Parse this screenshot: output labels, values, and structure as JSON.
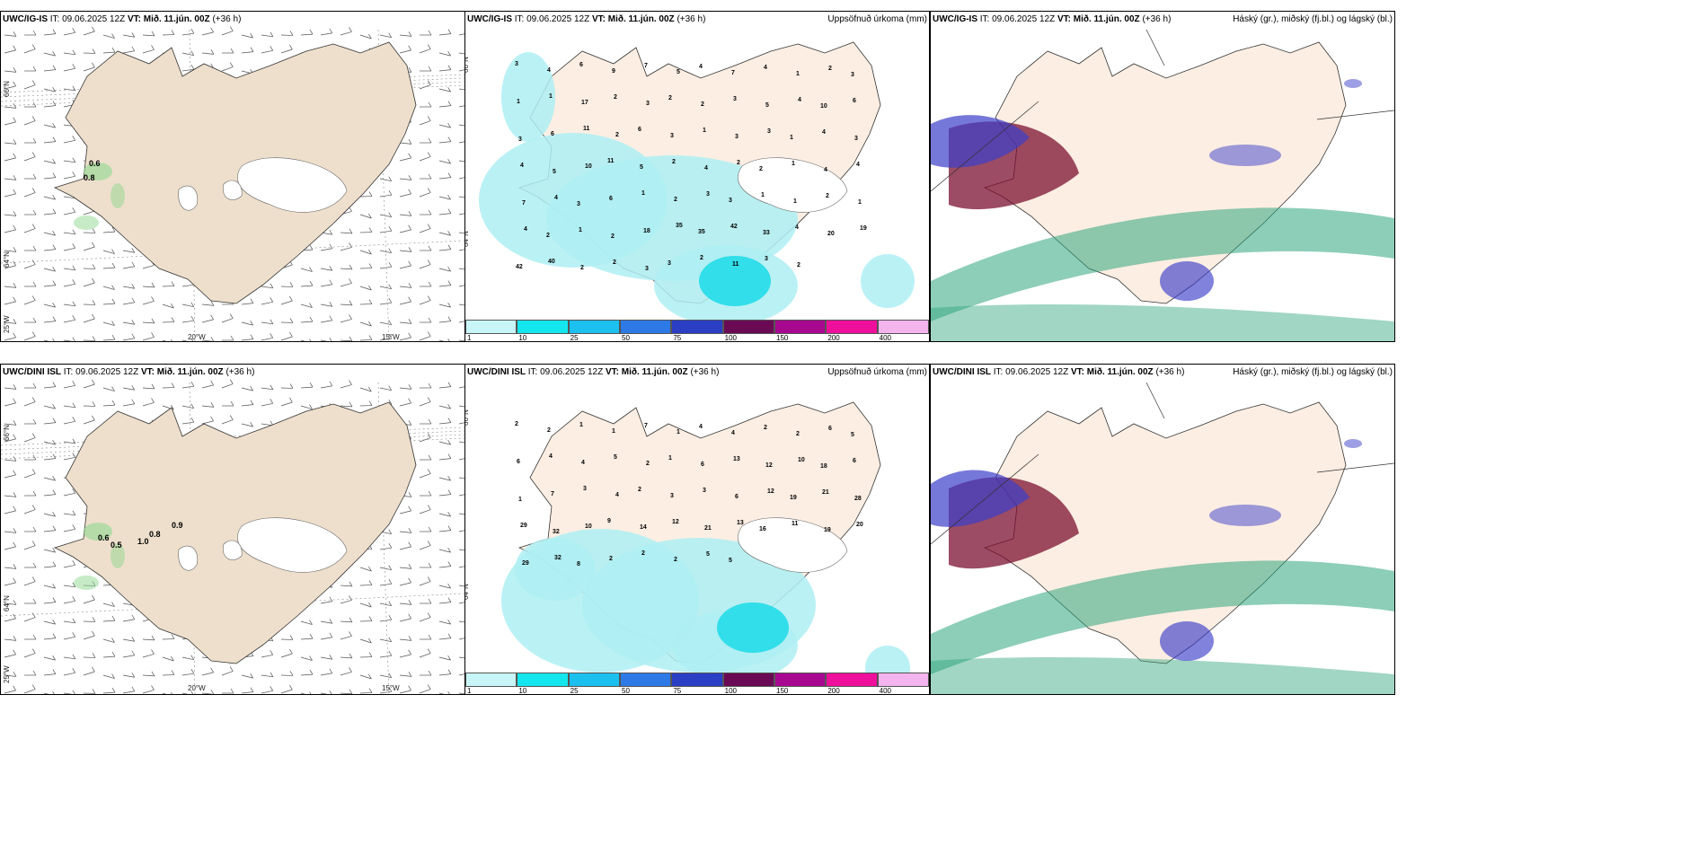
{
  "rows": [
    {
      "model": "UWC/IG-IS",
      "it_label": "IT:",
      "it_value": "09.06.2025 12Z",
      "vt_label": "VT:",
      "vt_value": "Mið. 11.jún. 00Z",
      "lead": "(+36 h)",
      "precip_title": "Uppsöfnuð úrkoma (mm)",
      "cloud_title": "Háský (gr.), miðský (fj.bl.) og lágský (bl.)",
      "wind_values": [
        "0.6",
        "0.8"
      ],
      "precip_values": [
        "3",
        "4",
        "6",
        "9",
        "7",
        "5",
        "4",
        "7",
        "4",
        "1",
        "2",
        "3",
        "1",
        "1",
        "17",
        "2",
        "3",
        "2",
        "2",
        "3",
        "5",
        "4",
        "10",
        "6",
        "3",
        "6",
        "11",
        "2",
        "6",
        "3",
        "1",
        "3",
        "3",
        "1",
        "4",
        "3",
        "4",
        "5",
        "10",
        "11",
        "5",
        "2",
        "4",
        "2",
        "2",
        "1",
        "4",
        "4",
        "7",
        "4",
        "3",
        "6",
        "1",
        "2",
        "3",
        "3",
        "1",
        "1",
        "2",
        "1",
        "4",
        "2",
        "1",
        "2",
        "18",
        "35",
        "35",
        "42",
        "33",
        "4",
        "20",
        "19",
        "42",
        "40",
        "2",
        "2",
        "3",
        "3",
        "2",
        "11",
        "3",
        "2"
      ]
    },
    {
      "model": "UWC/DINI ISL",
      "it_label": "IT:",
      "it_value": "09.06.2025 12Z",
      "vt_label": "VT:",
      "vt_value": "Mið. 11.jún. 00Z",
      "lead": "(+36 h)",
      "precip_title": "Uppsöfnuð úrkoma (mm)",
      "cloud_title": "Háský (gr.), miðský (fj.bl.) og lágský (bl.)",
      "wind_values": [
        "0.9",
        "0.8",
        "0.6",
        "0.5",
        "1.0"
      ],
      "precip_values": [
        "2",
        "2",
        "1",
        "1",
        "7",
        "1",
        "4",
        "4",
        "2",
        "2",
        "6",
        "5",
        "6",
        "4",
        "4",
        "5",
        "2",
        "1",
        "6",
        "13",
        "12",
        "10",
        "18",
        "6",
        "1",
        "7",
        "3",
        "4",
        "2",
        "3",
        "3",
        "6",
        "12",
        "19",
        "21",
        "28",
        "29",
        "32",
        "10",
        "9",
        "14",
        "12",
        "21",
        "13",
        "16",
        "11",
        "19",
        "20",
        "29",
        "32",
        "8",
        "2",
        "2",
        "2",
        "5",
        "5"
      ]
    }
  ],
  "axis_labels": {
    "lat_66": "66°N",
    "lat_64": "64°N",
    "lon_25": "25°W",
    "lon_20": "20°W",
    "lon_15": "15°W"
  },
  "colorbar": {
    "ticks": [
      "1",
      "10",
      "25",
      "50",
      "75",
      "100",
      "150",
      "200",
      "400"
    ],
    "colors": [
      "#c8f5f8",
      "#14e6ee",
      "#1cc0ef",
      "#2d7ae6",
      "#2a3fc4",
      "#6a0a55",
      "#a8088f",
      "#ee0f9c",
      "#f4b4ee"
    ]
  },
  "colors": {
    "land": "#eedfcc",
    "land_precip": "#fdeee3",
    "ice": "#ffffff",
    "wind_green": "#8fd88f",
    "precip_light": "#aeeef3",
    "precip_mid": "#23dbe8",
    "cloud_high": "#2fa57d",
    "cloud_mid": "#7b1030",
    "cloud_low": "#3c3fc9"
  }
}
